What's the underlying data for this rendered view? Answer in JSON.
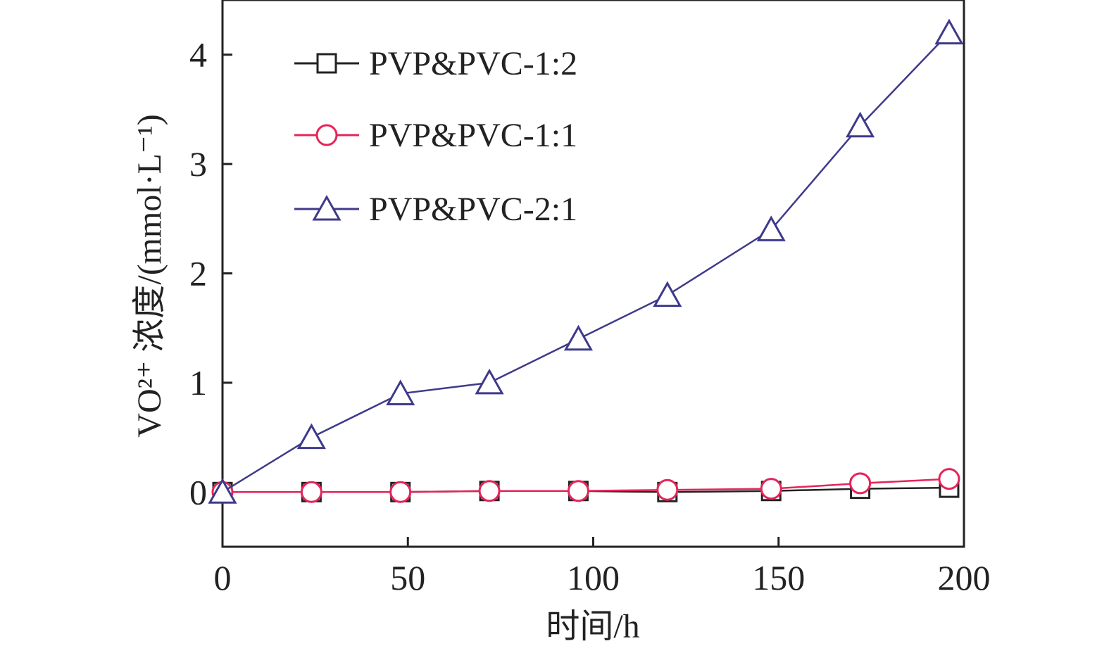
{
  "chart_data": {
    "type": "line",
    "xlabel": "时间/h",
    "ylabel": "VO²⁺ 浓度/(mmol·L⁻¹)",
    "xlim": [
      0,
      200
    ],
    "ylim": [
      -0.5,
      4.5
    ],
    "xticks": [
      "0",
      "50",
      "100",
      "150",
      "200"
    ],
    "yticks": [
      "0",
      "1",
      "2",
      "3",
      "4"
    ],
    "grid": false,
    "legend_position": "top-left",
    "x": [
      0,
      24,
      48,
      72,
      96,
      120,
      148,
      172,
      196
    ],
    "series": [
      {
        "name": "PVP&PVC-1:2",
        "marker": "square",
        "color": "#222222",
        "values": [
          0,
          0,
          0,
          0.01,
          0.01,
          0,
          0.01,
          0.03,
          0.04
        ]
      },
      {
        "name": "PVP&PVC-1:1",
        "marker": "circle",
        "color": "#e5245a",
        "values": [
          0,
          0,
          0,
          0.01,
          0.01,
          0.02,
          0.03,
          0.08,
          0.12
        ]
      },
      {
        "name": "PVP&PVC-2:1",
        "marker": "triangle",
        "color": "#3e3a8a",
        "values": [
          0,
          0.5,
          0.9,
          1.0,
          1.4,
          1.8,
          2.4,
          3.35,
          4.2
        ]
      }
    ]
  }
}
